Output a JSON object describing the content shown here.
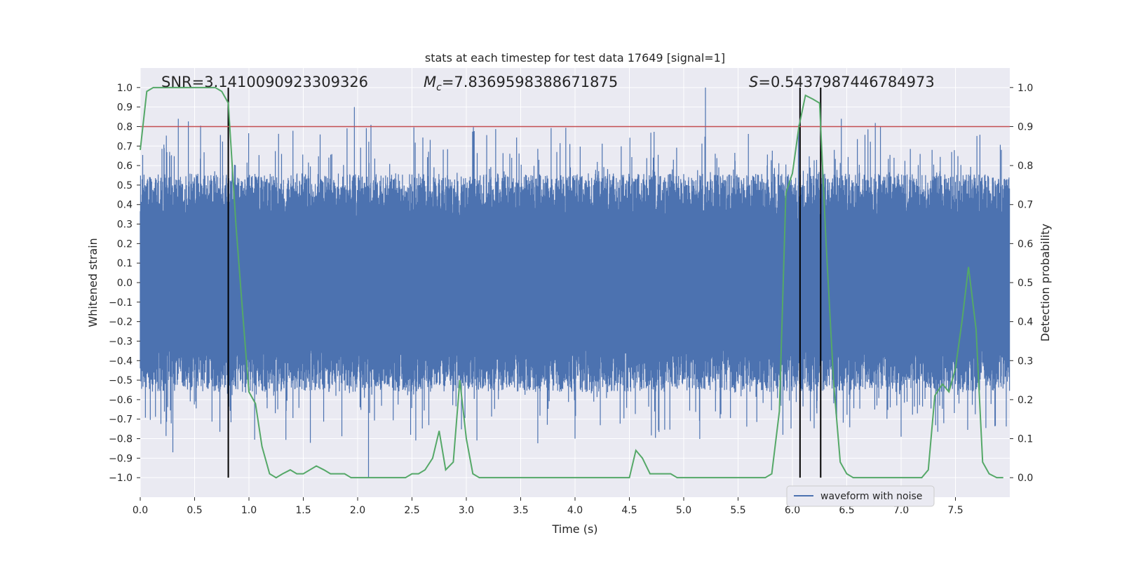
{
  "chart_data": {
    "type": "line",
    "title": "stats at each timestep for test data 17649 [signal=1]",
    "xlabel": "Time (s)",
    "ylabel_left": "Whitened strain",
    "ylabel_right": "Detection probability",
    "xlim": [
      0.0,
      8.0
    ],
    "ylim_left": [
      -1.1,
      1.1
    ],
    "ylim_right": [
      -0.05,
      1.05
    ],
    "x_ticks": [
      "0.0",
      "0.5",
      "1.0",
      "1.5",
      "2.0",
      "2.5",
      "3.0",
      "3.5",
      "4.0",
      "4.5",
      "5.0",
      "5.5",
      "6.0",
      "6.5",
      "7.0",
      "7.5"
    ],
    "y_left_ticks": [
      "1.0",
      "0.9",
      "0.8",
      "0.7",
      "0.6",
      "0.5",
      "0.4",
      "0.3",
      "0.2",
      "0.1",
      "0.0",
      "−0.1",
      "−0.2",
      "−0.3",
      "−0.4",
      "−0.5",
      "−0.6",
      "−0.7",
      "−0.8",
      "−0.9",
      "−1.0"
    ],
    "y_right_ticks": [
      "1.0",
      "0.9",
      "0.8",
      "0.7",
      "0.6",
      "0.5",
      "0.4",
      "0.3",
      "0.2",
      "0.1",
      "0.0"
    ],
    "grid": true,
    "legend": {
      "position": "lower-right",
      "entries": [
        "waveform with noise"
      ]
    },
    "annotations": {
      "snr": "SNR=3.1410090923309326",
      "mc_symbol": "M",
      "mc_sub": "c",
      "mc_value": "=7.8369598388671875",
      "s_symbol": "S",
      "s_value": "=0.5437987446784973"
    },
    "threshold": {
      "value": 0.9,
      "axis": "right"
    },
    "vertical_lines_x": [
      0.81,
      6.07,
      6.26
    ],
    "series": [
      {
        "name": "waveform with noise",
        "axis": "left",
        "description_of_shape": "dense noisy strain",
        "envelope": {
          "typical_high": 0.4,
          "typical_low": -0.4
        },
        "spikes": [
          {
            "x": 0.35,
            "y": 0.84
          },
          {
            "x": 0.3,
            "y": -0.87
          },
          {
            "x": 1.97,
            "y": 0.9
          },
          {
            "x": 2.1,
            "y": -1.0
          },
          {
            "x": 5.2,
            "y": 1.0
          },
          {
            "x": 6.45,
            "y": 0.84
          },
          {
            "x": 2.88,
            "y": -0.45
          },
          {
            "x": 4.0,
            "y": -0.8
          },
          {
            "x": 7.0,
            "y": -0.79
          },
          {
            "x": 7.55,
            "y": 0.55
          }
        ]
      },
      {
        "name": "detection probability",
        "axis": "right",
        "x": [
          0.0,
          0.06,
          0.12,
          0.19,
          0.25,
          0.31,
          0.38,
          0.44,
          0.5,
          0.56,
          0.62,
          0.69,
          0.75,
          0.81,
          0.88,
          0.94,
          1.0,
          1.06,
          1.12,
          1.19,
          1.25,
          1.31,
          1.38,
          1.44,
          1.5,
          1.56,
          1.62,
          1.69,
          1.75,
          1.81,
          1.88,
          1.94,
          2.0,
          2.06,
          2.12,
          2.19,
          2.25,
          2.31,
          2.38,
          2.44,
          2.5,
          2.56,
          2.62,
          2.69,
          2.75,
          2.81,
          2.88,
          2.94,
          3.0,
          3.06,
          3.12,
          3.19,
          3.25,
          3.31,
          3.38,
          3.44,
          3.5,
          3.56,
          3.62,
          3.69,
          3.75,
          3.81,
          3.88,
          3.94,
          4.0,
          4.06,
          4.12,
          4.19,
          4.25,
          4.31,
          4.38,
          4.44,
          4.5,
          4.56,
          4.62,
          4.69,
          4.75,
          4.81,
          4.88,
          4.94,
          5.0,
          5.06,
          5.12,
          5.19,
          5.25,
          5.31,
          5.38,
          5.44,
          5.5,
          5.56,
          5.62,
          5.69,
          5.75,
          5.81,
          5.88,
          5.94,
          6.0,
          6.06,
          6.12,
          6.19,
          6.25,
          6.31,
          6.38,
          6.44,
          6.5,
          6.56,
          6.62,
          6.69,
          6.75,
          6.81,
          6.88,
          6.94,
          7.0,
          7.06,
          7.12,
          7.19,
          7.25,
          7.31,
          7.38,
          7.44,
          7.5,
          7.56,
          7.62,
          7.69,
          7.75,
          7.81,
          7.88,
          7.94
        ],
        "y": [
          0.84,
          0.99,
          1.0,
          1.0,
          1.0,
          1.0,
          1.0,
          1.0,
          1.0,
          1.0,
          1.0,
          1.0,
          0.99,
          0.96,
          0.65,
          0.43,
          0.22,
          0.19,
          0.08,
          0.01,
          0.0,
          0.01,
          0.02,
          0.01,
          0.01,
          0.02,
          0.03,
          0.02,
          0.01,
          0.01,
          0.01,
          0.0,
          0.0,
          0.0,
          0.0,
          0.0,
          0.0,
          0.0,
          0.0,
          0.0,
          0.01,
          0.01,
          0.02,
          0.05,
          0.12,
          0.02,
          0.04,
          0.25,
          0.1,
          0.01,
          0.0,
          0.0,
          0.0,
          0.0,
          0.0,
          0.0,
          0.0,
          0.0,
          0.0,
          0.0,
          0.0,
          0.0,
          0.0,
          0.0,
          0.0,
          0.0,
          0.0,
          0.0,
          0.0,
          0.0,
          0.0,
          0.0,
          0.0,
          0.07,
          0.05,
          0.01,
          0.01,
          0.01,
          0.01,
          0.0,
          0.0,
          0.0,
          0.0,
          0.0,
          0.0,
          0.0,
          0.0,
          0.0,
          0.0,
          0.0,
          0.0,
          0.0,
          0.0,
          0.01,
          0.17,
          0.73,
          0.78,
          0.9,
          0.98,
          0.97,
          0.96,
          0.6,
          0.24,
          0.04,
          0.01,
          0.0,
          0.0,
          0.0,
          0.0,
          0.0,
          0.0,
          0.0,
          0.0,
          0.0,
          0.0,
          0.0,
          0.02,
          0.21,
          0.24,
          0.22,
          0.28,
          0.4,
          0.54,
          0.38,
          0.04,
          0.01,
          0.0,
          0.0
        ]
      }
    ],
    "colors": {
      "background": "#eaeaf2",
      "grid": "#ffffff",
      "strain": "#4c72b0",
      "probability": "#55a868",
      "threshold": "#c44e52",
      "vlines": "#000000"
    }
  }
}
